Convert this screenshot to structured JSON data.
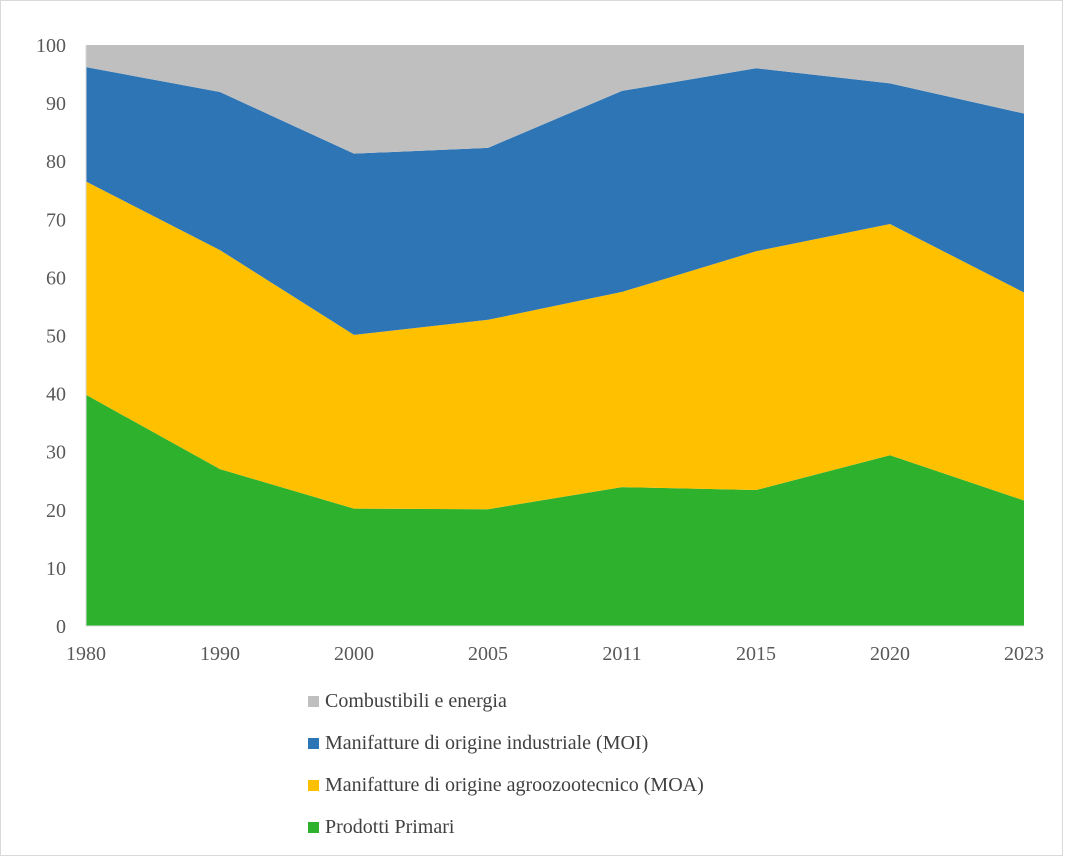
{
  "chart_data": {
    "type": "area",
    "stacked": true,
    "categories": [
      "1980",
      "1990",
      "2000",
      "2005",
      "2011",
      "2015",
      "2020",
      "2023"
    ],
    "series": [
      {
        "name": "Prodotti Primari",
        "color": "#2eb22e",
        "values": [
          39.8,
          27.0,
          20.2,
          20.1,
          23.9,
          23.4,
          29.4,
          21.6
        ]
      },
      {
        "name": "Manifatture di origine agroozootecnico (MOA)",
        "color": "#ffc000",
        "values": [
          36.7,
          37.7,
          29.9,
          32.6,
          33.6,
          41.1,
          39.8,
          35.8
        ]
      },
      {
        "name": "Manifatture di origine industriale (MOI)",
        "color": "#2e75b6",
        "values": [
          19.7,
          27.2,
          31.2,
          29.6,
          34.6,
          31.5,
          24.2,
          30.8
        ]
      },
      {
        "name": "Combustibili e energia",
        "color": "#bfbfbf",
        "values": [
          3.8,
          8.1,
          18.7,
          17.7,
          7.9,
          4.0,
          6.6,
          11.8
        ]
      }
    ],
    "legend_order": [
      3,
      2,
      1,
      0
    ],
    "ylim": [
      0,
      100
    ],
    "yticks": [
      "0",
      "10",
      "20",
      "30",
      "40",
      "50",
      "60",
      "70",
      "80",
      "90",
      "100"
    ],
    "legend_position": "bottom",
    "grid": false,
    "axis_color": "#d9d9d9"
  }
}
